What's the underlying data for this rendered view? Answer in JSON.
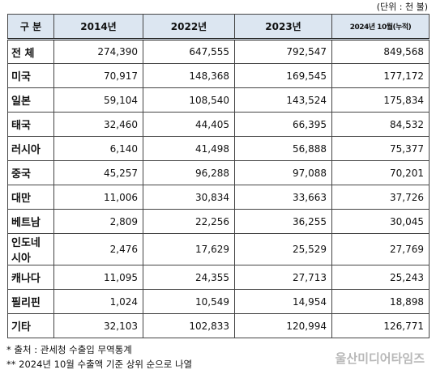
{
  "unit": "(단위 : 천 불)",
  "table": {
    "header": [
      "구   분",
      "2014년",
      "2022년",
      "2023년",
      "2024년 10월(누적)"
    ],
    "rows": [
      [
        "전  체",
        "274,390",
        "647,555",
        "792,547",
        "849,568"
      ],
      [
        "미국",
        "70,917",
        "148,368",
        "169,545",
        "177,172"
      ],
      [
        "일본",
        "59,104",
        "108,540",
        "143,524",
        "175,834"
      ],
      [
        "태국",
        "32,460",
        "44,405",
        "66,395",
        "84,532"
      ],
      [
        "러시아",
        "6,140",
        "41,498",
        "56,888",
        "75,377"
      ],
      [
        "중국",
        "45,257",
        "96,288",
        "97,088",
        "70,201"
      ],
      [
        "대만",
        "11,006",
        "30,834",
        "33,663",
        "37,726"
      ],
      [
        "베트남",
        "2,809",
        "22,256",
        "36,255",
        "30,045"
      ],
      [
        "인도네시아",
        "2,476",
        "17,629",
        "25,529",
        "27,769"
      ],
      [
        "캐나다",
        "11,095",
        "24,355",
        "27,713",
        "25,243"
      ],
      [
        "필리핀",
        "1,024",
        "10,549",
        "14,954",
        "18,898"
      ],
      [
        "기타",
        "32,103",
        "102,833",
        "120,994",
        "126,771"
      ]
    ]
  },
  "notes": [
    "* 출처 : 관세청 수출입 무역통계",
    "** 2024년 10월 수출액 기준 상위 순으로 나열"
  ],
  "watermark": "울산미디어타임즈"
}
